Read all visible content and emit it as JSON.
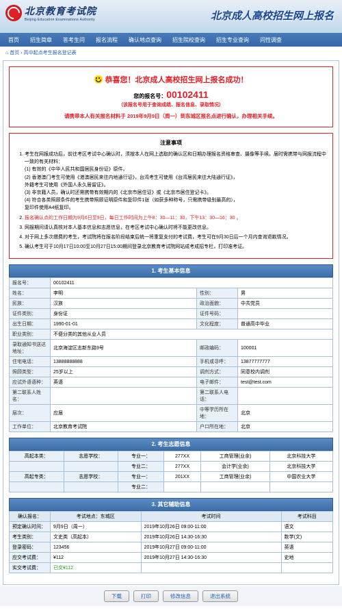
{
  "header": {
    "logo_cn": "北京教育考试院",
    "logo_en": "Beijing Education Examinations Authority",
    "title": "北京成人高校招生网上报名"
  },
  "nav": [
    "首页",
    "招生简章",
    "答考生问",
    "报名流程",
    "确认地点查询",
    "招生院校查询",
    "招生专业查询",
    "问性调查"
  ],
  "breadcrumb": {
    "home": "首页",
    "sep": "›",
    "cur": "高中起点考生报名登记表"
  },
  "success": {
    "title": "恭喜您！北京成人高校招生网上报名成功！",
    "reg_label": "您的报名号：",
    "reg_num": "00102411",
    "reg_note": "（该报名号用于查询成绩、报名信息、录取情况）",
    "inst": "请携带本人有关报名材料于 2019年9月9日（周一）到东城区报名点进行确认，办理相关手续。"
  },
  "notice": {
    "title": "注意事项",
    "items": [
      "考生在网报成功后，前往考区考试中心确认时，须按本人在网上选取的确认区和日期办理报名资格审查、摄像等手续。届时需携带与网报流程中一致的有关材料：",
      "报名确认点的工作日期为9月6日至9日，每日工作时间为上午8：30—11：30，下午13：30—16：30 。",
      "网报期间请认真核对本人基本信息和志愿信息，在考区考试中心确认时将不能更改信息。",
      "对于网上多次缴费的考生，考试院将在报名阶段结束后统一将重复支付的考试费，考生可在9月30日后一个月内查询退款情况。",
      "确认考生可于10月17日10:00至10月27日15:00期间登录北京教育考试院网站成考成招专栏，打印准考证。"
    ],
    "sub": [
      "(1) 有效的《中华人民共和国居民身份证》原件。",
      "(2) 香港澳门考生可使用《港澳居民来往内地通行证》，台湾考生可使用《台湾居民来往大陆通行证》，",
      "     外籍考生可使用《外国人永久居留证》。",
      "(3) 非京籍人员，确认时还需携带有效期内的《北京市居住证》或《北京市居住登记卡》。",
      "(4) 符合各类照顾条件的考生携带照顾证明原件和复印件1张（如获多种称号，只需携带级别最高的），",
      "     复印件使用A4纸复印。"
    ]
  },
  "sect1": "1. 考生基本信息",
  "basic": {
    "f": [
      [
        "报名号：",
        "00102411",
        "",
        ""
      ],
      [
        "姓名：",
        "李明",
        "性别：",
        "男"
      ],
      [
        "民族：",
        "汉族",
        "政治面貌：",
        "中共党员"
      ],
      [
        "证件类别：",
        "身份证",
        "证件号码：",
        ""
      ],
      [
        "出生日期：",
        "1990-01-01",
        "文化程度：",
        "普通高中毕业"
      ],
      [
        "职业类别：",
        "不便分类的其他从业人员",
        "",
        ""
      ],
      [
        "录取通知书送达地址：",
        "北京海淀区志新东路9号",
        "邮政编码：",
        "100001"
      ],
      [
        "住宅电话：",
        "13888888888",
        "手机或寻呼：",
        "13877777777"
      ],
      [
        "照顾类型：",
        "25岁以上",
        "调剂方式：",
        "同意校内调剂"
      ],
      [
        "应试外语语种：",
        "英语",
        "电子邮件：",
        "test@test.com"
      ],
      [
        "第二联系人姓名：",
        "",
        "第二联系人电话：",
        ""
      ],
      [
        "层次：",
        "应届",
        "中等学历所在地：",
        "北京"
      ],
      [
        "工作单位：",
        "北京教育考试院",
        "户口所在地：",
        "北京"
      ]
    ]
  },
  "sect2": "2. 考生志愿信息",
  "vol": {
    "rows": [
      [
        "高起本类：",
        "志愿学校：",
        "专业一：",
        "277XX",
        "工商管理(业余)",
        "北京科技大学"
      ],
      [
        "",
        "",
        "专业二：",
        "277XX",
        "会计学(业余)",
        "北京科技大学"
      ],
      [
        "高起专类：",
        "志愿学校：",
        "专业一：",
        "201XX",
        "工商管理(业余)",
        "中国农业大学"
      ],
      [
        "",
        "",
        "专业二：",
        "",
        "",
        ""
      ]
    ]
  },
  "sect3": "3. 其它辅助信息",
  "other": {
    "h": [
      "确认报名：",
      "考试地点：东城区",
      "考试时间",
      "考试科目"
    ],
    "rows": [
      [
        "预定确认时间：",
        "9月9日（周一）",
        "2019年10月26日 09:00-11:00",
        "语文"
      ],
      [
        "考生类别：",
        "文史类（高起本）",
        "2019年10月26日 14:30-16:30",
        "数学(文)"
      ],
      [
        "登录密码：",
        "123456",
        "2019年10月27日 09:00-11:00",
        "英语"
      ],
      [
        "应交考试费：",
        "¥112",
        "2019年10月27日 14:30-16:30",
        "史地"
      ],
      [
        "实交考试费：",
        "已交¥112",
        "",
        ""
      ]
    ]
  },
  "buttons": [
    "下载",
    "打印",
    "修改信息",
    "退出系统"
  ]
}
